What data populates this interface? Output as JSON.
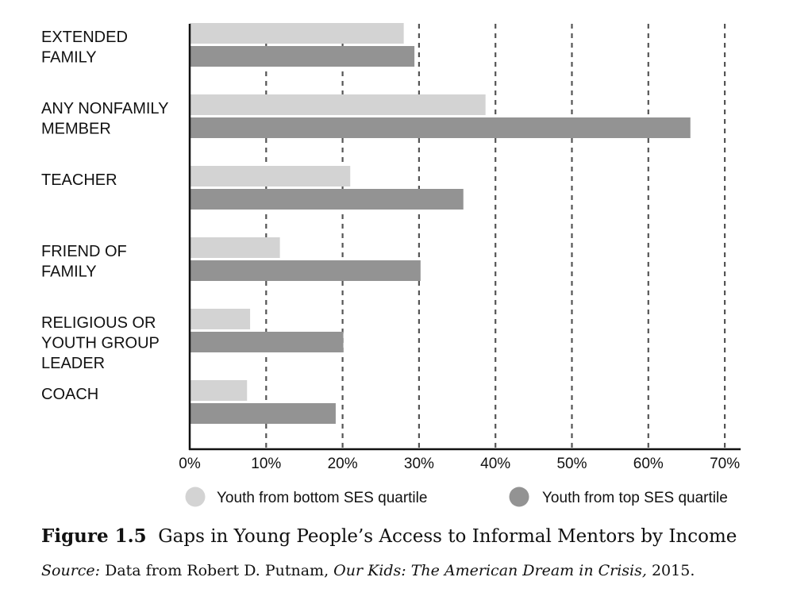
{
  "chart_data": {
    "type": "bar",
    "orientation": "horizontal",
    "categories": [
      [
        "EXTENDED",
        "FAMILY"
      ],
      [
        "ANY NONFAMILY",
        "MEMBER"
      ],
      [
        "TEACHER"
      ],
      [
        "FRIEND OF",
        "FAMILY"
      ],
      [
        "RELIGIOUS OR",
        "YOUTH GROUP",
        "LEADER"
      ],
      [
        "COACH"
      ]
    ],
    "series": [
      {
        "name": "Youth from bottom SES quartile",
        "color": "#d3d3d3",
        "values": [
          28,
          38.7,
          21,
          11.8,
          7.9,
          7.5
        ]
      },
      {
        "name": "Youth from top SES quartile",
        "color": "#939393",
        "values": [
          29.4,
          65.5,
          35.8,
          30.2,
          20.1,
          19.1
        ]
      }
    ],
    "xlim": [
      0,
      70
    ],
    "xticks": [
      0,
      10,
      20,
      30,
      40,
      50,
      60,
      70
    ],
    "xtick_labels": [
      "0%",
      "10%",
      "20%",
      "30%",
      "40%",
      "50%",
      "60%",
      "70%"
    ],
    "grid": "vertical dashed",
    "legend_position": "bottom"
  },
  "caption": {
    "figure_label": "Figure 1.5",
    "title": "Gaps in Young People’s Access to Informal Mentors by Income",
    "source_label": "Source:",
    "source_text_1": "Data from Robert D. Putnam,",
    "source_book": "Our Kids: The American Dream in Crisis,",
    "source_year": "2015."
  }
}
